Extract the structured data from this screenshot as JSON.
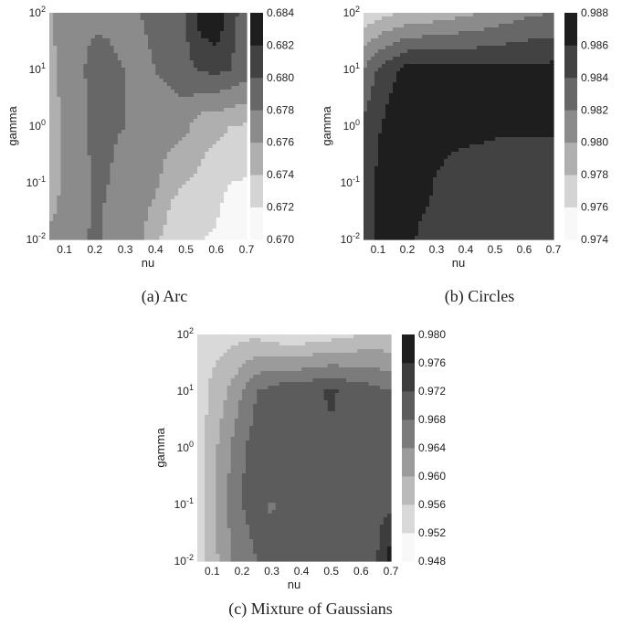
{
  "figure": {
    "panels": [
      {
        "caption": "(a) Arc",
        "xlabel": "nu",
        "ylabel": "gamma",
        "x_ticks": [
          "0.1",
          "0.2",
          "0.3",
          "0.4",
          "0.5",
          "0.6",
          "0.7"
        ],
        "y_ticks": [
          {
            "base": "10",
            "exp": "-2"
          },
          {
            "base": "10",
            "exp": "-1"
          },
          {
            "base": "10",
            "exp": "0"
          },
          {
            "base": "10",
            "exp": "1"
          },
          {
            "base": "10",
            "exp": "2"
          }
        ],
        "colorbar_ticks": [
          "0.684",
          "0.682",
          "0.680",
          "0.678",
          "0.676",
          "0.674",
          "0.672",
          "0.670"
        ]
      },
      {
        "caption": "(b) Circles",
        "xlabel": "nu",
        "ylabel": "gamma",
        "x_ticks": [
          "0.1",
          "0.2",
          "0.3",
          "0.4",
          "0.5",
          "0.6",
          "0.7"
        ],
        "y_ticks": [
          {
            "base": "10",
            "exp": "-2"
          },
          {
            "base": "10",
            "exp": "-1"
          },
          {
            "base": "10",
            "exp": "0"
          },
          {
            "base": "10",
            "exp": "1"
          },
          {
            "base": "10",
            "exp": "2"
          }
        ],
        "colorbar_ticks": [
          "0.988",
          "0.986",
          "0.984",
          "0.982",
          "0.980",
          "0.978",
          "0.976",
          "0.974"
        ]
      },
      {
        "caption": "(c) Mixture of Gaussians",
        "xlabel": "nu",
        "ylabel": "gamma",
        "x_ticks": [
          "0.1",
          "0.2",
          "0.3",
          "0.4",
          "0.5",
          "0.6",
          "0.7"
        ],
        "y_ticks": [
          {
            "base": "10",
            "exp": "-2"
          },
          {
            "base": "10",
            "exp": "-1"
          },
          {
            "base": "10",
            "exp": "0"
          },
          {
            "base": "10",
            "exp": "1"
          },
          {
            "base": "10",
            "exp": "2"
          }
        ],
        "colorbar_ticks": [
          "0.980",
          "0.976",
          "0.972",
          "0.968",
          "0.964",
          "0.960",
          "0.956",
          "0.952",
          "0.948"
        ]
      }
    ]
  },
  "chart_data": [
    {
      "type": "heatmap",
      "title": "(a) Arc",
      "xlabel": "nu",
      "ylabel": "gamma",
      "x": [
        0.05,
        0.1,
        0.15,
        0.2,
        0.25,
        0.3,
        0.35,
        0.4,
        0.45,
        0.5,
        0.55,
        0.6,
        0.65,
        0.7
      ],
      "y": [
        0.01,
        0.1,
        1,
        10,
        100
      ],
      "y_scale": "log",
      "xlim": [
        0.05,
        0.7
      ],
      "ylim": [
        0.01,
        100
      ],
      "colorbar_range": [
        0.67,
        0.684
      ],
      "z": [
        [
          0.6765,
          0.677,
          0.6772,
          0.6785,
          0.6775,
          0.677,
          0.6762,
          0.6745,
          0.673,
          0.6725,
          0.672,
          0.6718,
          0.67,
          0.67
        ],
        [
          0.6745,
          0.6765,
          0.6775,
          0.6782,
          0.678,
          0.6772,
          0.677,
          0.6765,
          0.6745,
          0.674,
          0.6735,
          0.6728,
          0.672,
          0.6718
        ],
        [
          0.675,
          0.6762,
          0.6772,
          0.6786,
          0.6782,
          0.678,
          0.6775,
          0.6772,
          0.677,
          0.6765,
          0.6748,
          0.6745,
          0.674,
          0.6738
        ],
        [
          0.675,
          0.677,
          0.6778,
          0.6785,
          0.6782,
          0.678,
          0.6778,
          0.678,
          0.6785,
          0.6795,
          0.6802,
          0.6805,
          0.68,
          0.679
        ],
        [
          0.6758,
          0.6772,
          0.6775,
          0.6777,
          0.6778,
          0.6776,
          0.678,
          0.6782,
          0.679,
          0.68,
          0.6832,
          0.6842,
          0.6805,
          0.6792
        ]
      ]
    },
    {
      "type": "heatmap",
      "title": "(b) Circles",
      "xlabel": "nu",
      "ylabel": "gamma",
      "x": [
        0.05,
        0.1,
        0.15,
        0.2,
        0.25,
        0.3,
        0.35,
        0.4,
        0.45,
        0.5,
        0.55,
        0.6,
        0.65,
        0.7
      ],
      "y": [
        0.01,
        0.1,
        1,
        10,
        100
      ],
      "y_scale": "log",
      "xlim": [
        0.05,
        0.7
      ],
      "ylim": [
        0.01,
        100
      ],
      "colorbar_range": [
        0.974,
        0.988
      ],
      "z": [
        [
          0.985,
          0.9862,
          0.987,
          0.9866,
          0.9855,
          0.9852,
          0.9852,
          0.9852,
          0.9852,
          0.9852,
          0.9852,
          0.9852,
          0.9852,
          0.9852
        ],
        [
          0.985,
          0.9863,
          0.9872,
          0.9873,
          0.9868,
          0.9858,
          0.9853,
          0.9853,
          0.9853,
          0.9853,
          0.9853,
          0.9853,
          0.9853,
          0.9853
        ],
        [
          0.9845,
          0.9858,
          0.987,
          0.9872,
          0.9872,
          0.987,
          0.9866,
          0.9864,
          0.9863,
          0.9862,
          0.9862,
          0.9862,
          0.9862,
          0.9862
        ],
        [
          0.982,
          0.9842,
          0.9855,
          0.9868,
          0.9868,
          0.9868,
          0.9867,
          0.9866,
          0.9866,
          0.9866,
          0.9866,
          0.9866,
          0.9866,
          0.9866
        ],
        [
          0.9765,
          0.9772,
          0.9778,
          0.9782,
          0.9785,
          0.9788,
          0.9792,
          0.9796,
          0.98,
          0.9805,
          0.981,
          0.9815,
          0.9818,
          0.982
        ]
      ]
    },
    {
      "type": "heatmap",
      "title": "(c) Mixture of Gaussians",
      "xlabel": "nu",
      "ylabel": "gamma",
      "x": [
        0.05,
        0.1,
        0.15,
        0.2,
        0.25,
        0.3,
        0.35,
        0.4,
        0.45,
        0.5,
        0.55,
        0.6,
        0.65,
        0.7
      ],
      "y": [
        0.01,
        0.1,
        1,
        10,
        100
      ],
      "y_scale": "log",
      "xlim": [
        0.05,
        0.7
      ],
      "ylim": [
        0.01,
        100
      ],
      "colorbar_range": [
        0.948,
        0.98
      ],
      "z": [
        [
          0.954,
          0.958,
          0.963,
          0.966,
          0.968,
          0.969,
          0.971,
          0.9712,
          0.9712,
          0.9712,
          0.9712,
          0.9712,
          0.9712,
          0.979
        ],
        [
          0.954,
          0.959,
          0.964,
          0.968,
          0.97,
          0.9675,
          0.9705,
          0.9712,
          0.9713,
          0.9713,
          0.9713,
          0.9713,
          0.9712,
          0.9705
        ],
        [
          0.9535,
          0.9585,
          0.963,
          0.9675,
          0.97,
          0.971,
          0.97,
          0.9712,
          0.9713,
          0.9713,
          0.9713,
          0.9712,
          0.9705,
          0.97
        ],
        [
          0.953,
          0.957,
          0.96,
          0.964,
          0.968,
          0.9695,
          0.971,
          0.9712,
          0.9715,
          0.9725,
          0.9712,
          0.9705,
          0.969,
          0.968
        ],
        [
          0.954,
          0.954,
          0.9545,
          0.9548,
          0.955,
          0.954,
          0.9525,
          0.9525,
          0.954,
          0.9542,
          0.9548,
          0.956,
          0.957,
          0.956
        ]
      ]
    }
  ]
}
